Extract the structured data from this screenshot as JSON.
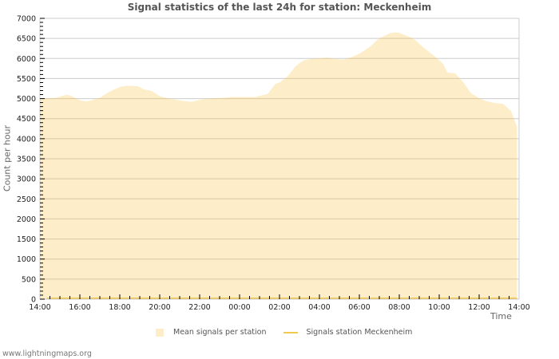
{
  "title": "Signal statistics of the last 24h for station: Meckenheim",
  "axis": {
    "ylabel": "Count per hour",
    "xlabel": "Time"
  },
  "legend": {
    "area_label": "Mean signals per station",
    "line_label": "Signals station Meckenheim"
  },
  "footer": "www.lightningmaps.org",
  "colors": {
    "area_fill": "#fdedc8",
    "line": "#f2c94c",
    "grid": "#cccccc",
    "grid_over_area": "#d9c8a0"
  },
  "chart_data": {
    "type": "area",
    "title": "Signal statistics of the last 24h for station: Meckenheim",
    "xlabel": "Time",
    "ylabel": "Count per hour",
    "ylim": [
      0,
      7000
    ],
    "yticks": [
      0,
      500,
      1000,
      1500,
      2000,
      2500,
      3000,
      3500,
      4000,
      4500,
      5000,
      5500,
      6000,
      6500,
      7000
    ],
    "xtick_labels": [
      "14:00",
      "16:00",
      "18:00",
      "20:00",
      "22:00",
      "00:00",
      "02:00",
      "04:00",
      "06:00",
      "08:00",
      "10:00",
      "12:00",
      "14:00"
    ],
    "x_unit": "hours since 14:00",
    "grid": true,
    "legend_position": "bottom",
    "series": [
      {
        "name": "Mean signals per station",
        "kind": "area",
        "x": [
          0,
          0.4,
          0.8,
          1.2,
          1.4,
          1.6,
          2.0,
          2.3,
          2.6,
          3.0,
          3.4,
          4.0,
          4.4,
          4.9,
          5.2,
          5.6,
          6.0,
          6.4,
          7.2,
          7.6,
          8.0,
          8.4,
          9.2,
          9.6,
          10.2,
          10.8,
          11.0,
          11.4,
          11.8,
          12.0,
          12.4,
          12.8,
          13.2,
          13.6,
          14.0,
          14.4,
          14.8,
          15.2,
          15.6,
          16.0,
          16.2,
          16.6,
          16.8,
          17.0,
          17.4,
          17.6,
          17.8,
          18.0,
          18.4,
          18.6,
          18.8,
          19.2,
          19.6,
          19.9,
          20.2,
          20.4,
          20.8,
          21.2,
          21.6,
          22.0,
          22.4,
          22.8,
          23.2,
          23.6,
          23.9
        ],
        "values": [
          5010,
          5010,
          5020,
          5080,
          5090,
          5060,
          4960,
          4930,
          4960,
          5020,
          5150,
          5290,
          5320,
          5310,
          5230,
          5190,
          5060,
          5010,
          4940,
          4920,
          4970,
          5000,
          5020,
          5040,
          5040,
          5040,
          5070,
          5110,
          5370,
          5400,
          5550,
          5800,
          5950,
          5990,
          6000,
          6020,
          5990,
          5970,
          6030,
          6120,
          6180,
          6320,
          6420,
          6500,
          6600,
          6640,
          6650,
          6640,
          6560,
          6520,
          6460,
          6280,
          6120,
          6000,
          5860,
          5650,
          5630,
          5410,
          5130,
          5010,
          4930,
          4890,
          4870,
          4690,
          4290
        ],
        "color": "#fdedc8"
      },
      {
        "name": "Signals station Meckenheim",
        "kind": "line",
        "x": [
          0.35,
          23.9
        ],
        "values": [
          0,
          0
        ],
        "color": "#f2c94c"
      }
    ]
  }
}
